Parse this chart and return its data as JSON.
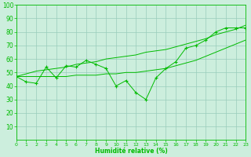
{
  "x": [
    0,
    1,
    2,
    3,
    4,
    5,
    6,
    7,
    8,
    9,
    10,
    11,
    12,
    13,
    14,
    15,
    16,
    17,
    18,
    19,
    20,
    21,
    22,
    23
  ],
  "y_main": [
    47,
    43,
    42,
    54,
    46,
    55,
    54,
    59,
    56,
    53,
    40,
    44,
    35,
    30,
    46,
    53,
    58,
    68,
    70,
    74,
    80,
    83,
    83,
    83
  ],
  "y_upper": [
    47,
    49,
    51,
    52,
    53,
    54,
    56,
    57,
    58,
    60,
    61,
    62,
    63,
    65,
    66,
    67,
    69,
    71,
    73,
    75,
    78,
    80,
    82,
    85
  ],
  "y_lower": [
    47,
    47,
    47,
    47,
    47,
    47,
    48,
    48,
    48,
    49,
    49,
    50,
    50,
    51,
    52,
    53,
    55,
    57,
    59,
    62,
    65,
    68,
    71,
    74
  ],
  "line_color": "#00bb00",
  "bg_color": "#cceedd",
  "grid_color": "#99ccbb",
  "xlabel": "Humidité relative (%)",
  "xlim": [
    0,
    23
  ],
  "ylim": [
    0,
    100
  ],
  "yticks": [
    10,
    20,
    30,
    40,
    50,
    60,
    70,
    80,
    90,
    100
  ],
  "xticks": [
    0,
    1,
    2,
    3,
    4,
    5,
    6,
    7,
    8,
    9,
    10,
    11,
    12,
    13,
    14,
    15,
    16,
    17,
    18,
    19,
    20,
    21,
    22,
    23
  ]
}
